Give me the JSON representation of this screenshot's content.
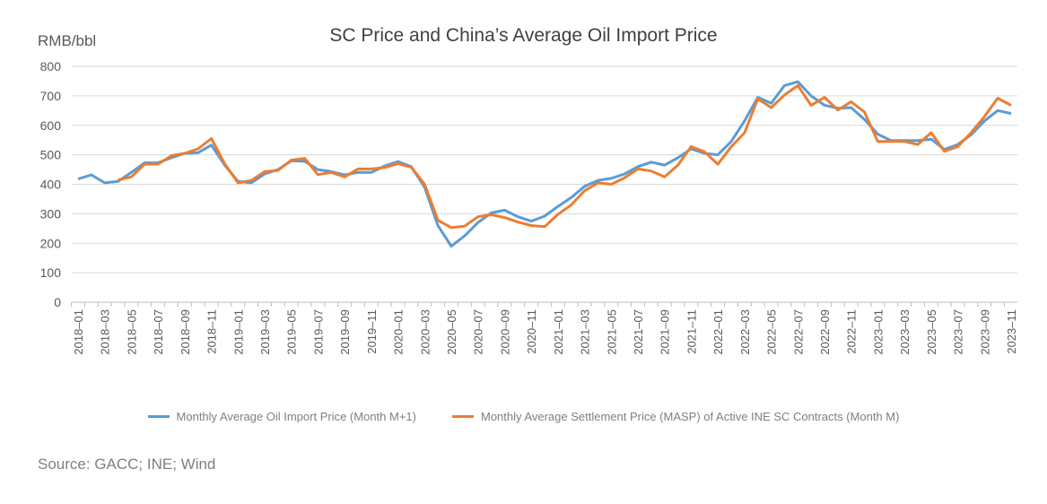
{
  "chart_data": {
    "type": "line",
    "title": "SC Price and China’s Average Oil Import Price",
    "ylabel": "RMB/bbl",
    "xlabel": "",
    "ylim": [
      0,
      800
    ],
    "yticks": [
      0,
      100,
      200,
      300,
      400,
      500,
      600,
      700,
      800
    ],
    "grid": true,
    "legend_position": "bottom",
    "x": [
      "2018-01",
      "2018-02",
      "2018-03",
      "2018-04",
      "2018-05",
      "2018-06",
      "2018-07",
      "2018-08",
      "2018-09",
      "2018-10",
      "2018-11",
      "2018-12",
      "2019-01",
      "2019-02",
      "2019-03",
      "2019-04",
      "2019-05",
      "2019-06",
      "2019-07",
      "2019-08",
      "2019-09",
      "2019-10",
      "2019-11",
      "2019-12",
      "2020-01",
      "2020-02",
      "2020-03",
      "2020-04",
      "2020-05",
      "2020-06",
      "2020-07",
      "2020-08",
      "2020-09",
      "2020-10",
      "2020-11",
      "2020-12",
      "2021-01",
      "2021-02",
      "2021-03",
      "2021-04",
      "2021-05",
      "2021-06",
      "2021-07",
      "2021-08",
      "2021-09",
      "2021-10",
      "2021-11",
      "2021-12",
      "2022-01",
      "2022-02",
      "2022-03",
      "2022-04",
      "2022-05",
      "2022-06",
      "2022-07",
      "2022-08",
      "2022-09",
      "2022-10",
      "2022-11",
      "2022-12",
      "2023-01",
      "2023-02",
      "2023-03",
      "2023-04",
      "2023-05",
      "2023-06",
      "2023-07",
      "2023-08",
      "2023-09",
      "2023-10",
      "2023-11"
    ],
    "series": [
      {
        "name": "Monthly Average Oil Import Price (Month M+1)",
        "color": "#5B9BD5",
        "values": [
          418,
          432,
          405,
          410,
          440,
          473,
          473,
          490,
          505,
          507,
          533,
          465,
          410,
          405,
          435,
          450,
          480,
          478,
          450,
          443,
          432,
          440,
          440,
          462,
          477,
          460,
          390,
          260,
          190,
          225,
          270,
          303,
          312,
          290,
          275,
          292,
          325,
          355,
          393,
          413,
          420,
          435,
          460,
          475,
          465,
          490,
          520,
          505,
          500,
          545,
          615,
          695,
          675,
          735,
          748,
          700,
          668,
          658,
          660,
          620,
          570,
          548,
          548,
          548,
          553,
          518,
          535,
          568,
          615,
          650,
          640
        ]
      },
      {
        "name": "Monthly Average Settlement Price (MASP) of Active INE SC Contracts (Month M)",
        "color": "#ED7D31",
        "values": [
          null,
          null,
          null,
          415,
          425,
          468,
          468,
          497,
          505,
          520,
          555,
          470,
          405,
          413,
          443,
          447,
          482,
          488,
          433,
          440,
          425,
          452,
          452,
          457,
          470,
          458,
          400,
          278,
          253,
          258,
          290,
          297,
          287,
          272,
          260,
          256,
          298,
          330,
          378,
          405,
          400,
          422,
          452,
          445,
          425,
          465,
          528,
          510,
          468,
          527,
          575,
          690,
          660,
          703,
          735,
          668,
          695,
          652,
          680,
          645,
          545,
          545,
          545,
          535,
          575,
          512,
          528,
          575,
          630,
          692,
          668
        ]
      }
    ]
  },
  "source": "Source: GACC; INE; Wind"
}
